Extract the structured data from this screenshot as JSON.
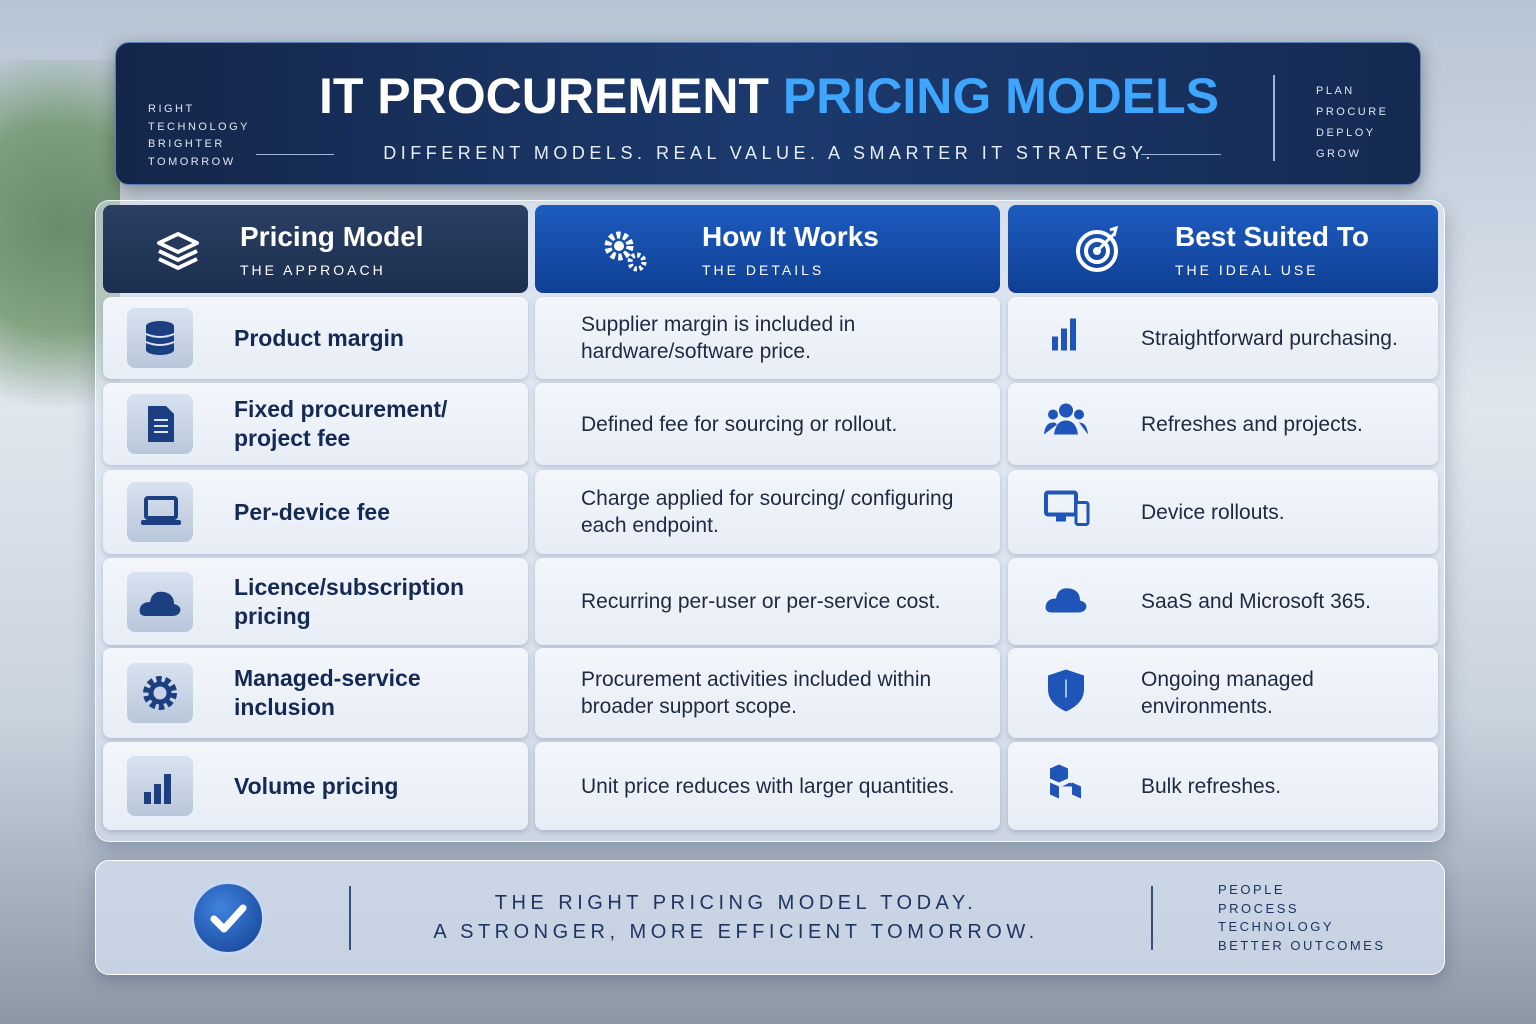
{
  "header": {
    "left_lines": [
      "RIGHT",
      "TECHNOLOGY",
      "BRIGHTER",
      "TOMORROW"
    ],
    "title_part1": "IT PROCUREMENT",
    "title_part2": "PRICING MODELS",
    "subtitle": "DIFFERENT MODELS. REAL VALUE. A SMARTER IT STRATEGY.",
    "right_lines": [
      "PLAN",
      "PROCURE",
      "DEPLOY",
      "GROW"
    ]
  },
  "table": {
    "columns": [
      {
        "title": "Pricing Model",
        "subtitle": "THE APPROACH"
      },
      {
        "title": "How It Works",
        "subtitle": "THE DETAILS"
      },
      {
        "title": "Best Suited To",
        "subtitle": "THE IDEAL USE"
      }
    ],
    "rows": [
      [
        "Product margin",
        "Supplier margin is included in hardware/software price.",
        "Straightforward purchasing."
      ],
      [
        "Fixed procurement/ project fee",
        "Defined fee for sourcing or rollout.",
        "Refreshes and projects."
      ],
      [
        "Per-device fee",
        "Charge applied for sourcing/ configuring each endpoint.",
        "Device rollouts."
      ],
      [
        "Licence/subscription pricing",
        "Recurring per-user or per-service cost.",
        "SaaS and Microsoft 365."
      ],
      [
        "Managed-service inclusion",
        "Procurement activities included within broader support scope.",
        "Ongoing managed environments."
      ],
      [
        "Volume pricing",
        "Unit price reduces with larger quantities.",
        "Bulk refreshes."
      ]
    ]
  },
  "footer": {
    "lines": [
      "THE RIGHT PRICING MODEL TODAY.",
      "A STRONGER, MORE EFFICIENT TOMORROW."
    ],
    "right_lines": [
      "PEOPLE",
      "PROCESS",
      "TECHNOLOGY",
      "BETTER OUTCOMES"
    ]
  }
}
